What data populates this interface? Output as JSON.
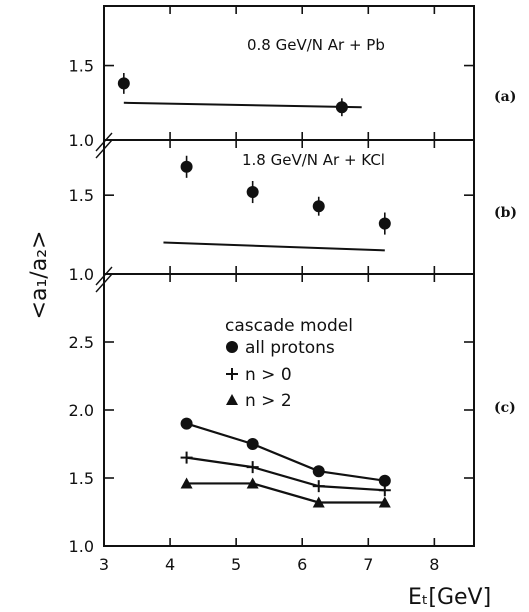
{
  "chart_data": [
    {
      "panel_label": "(a)",
      "title": "0.8 GeV/N  Ar + Pb",
      "type": "scatter",
      "ylim": [
        1.0,
        1.9
      ],
      "yticks": [
        "1.0",
        "1.5"
      ],
      "points": [
        {
          "x": 3.3,
          "y": 1.38,
          "err": 0.07
        },
        {
          "x": 6.6,
          "y": 1.22,
          "err": 0.06
        }
      ],
      "model_line": {
        "x": [
          3.3,
          6.9
        ],
        "y": [
          1.25,
          1.22
        ]
      }
    },
    {
      "panel_label": "(b)",
      "title": "1.8 GeV/N  Ar + KCl",
      "type": "scatter",
      "ylim": [
        1.0,
        1.85
      ],
      "yticks": [
        "1.0",
        "1.5"
      ],
      "points": [
        {
          "x": 4.25,
          "y": 1.68,
          "err": 0.07
        },
        {
          "x": 5.25,
          "y": 1.52,
          "err": 0.07
        },
        {
          "x": 6.25,
          "y": 1.43,
          "err": 0.06
        },
        {
          "x": 7.25,
          "y": 1.32,
          "err": 0.07
        }
      ],
      "model_line": {
        "x": [
          3.9,
          7.25
        ],
        "y": [
          1.2,
          1.15
        ]
      }
    },
    {
      "panel_label": "(c)",
      "type": "line",
      "ylim": [
        1.0,
        3.0
      ],
      "yticks": [
        "1.0",
        "1.5",
        "2.0",
        "2.5"
      ],
      "xlim": [
        3,
        8.6
      ],
      "xticks": [
        "3",
        "4",
        "5",
        "6",
        "7",
        "8"
      ],
      "xlabel": "Eₜ[GeV]",
      "legend_title": "cascade model",
      "series": [
        {
          "name": "all protons",
          "marker": "circle",
          "x": [
            4.25,
            5.25,
            6.25,
            7.25
          ],
          "y": [
            1.9,
            1.75,
            1.55,
            1.48
          ]
        },
        {
          "name": "n > 0",
          "marker": "plus",
          "x": [
            4.25,
            5.25,
            6.25,
            7.25
          ],
          "y": [
            1.65,
            1.58,
            1.44,
            1.41
          ]
        },
        {
          "name": "n > 2",
          "marker": "triangle",
          "x": [
            4.25,
            5.25,
            6.25,
            7.25
          ],
          "y": [
            1.46,
            1.46,
            1.32,
            1.32
          ]
        }
      ]
    }
  ],
  "ylabel": "<a₁/a₂>"
}
